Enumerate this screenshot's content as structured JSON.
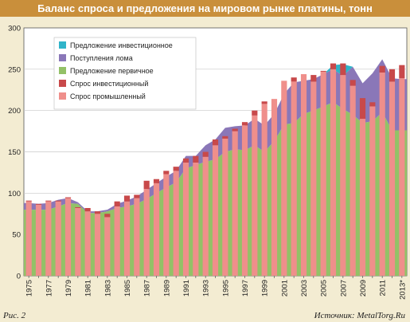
{
  "header": {
    "title": "Баланс спроса и предложения на мировом рынке платины, тонн"
  },
  "footer": {
    "figure_label": "Рис. 2",
    "source": "Источник: MetalTorg.Ru"
  },
  "colors": {
    "investment_supply": "#30b4c9",
    "scrap": "#8a77b8",
    "primary_supply": "#93c167",
    "investment_demand": "#c8494a",
    "industrial_demand": "#ef8f8b",
    "plot_bg": "#ffffff",
    "page_bg": "#f3ecd2",
    "title_bar": "#c98f3b"
  },
  "chart_data": {
    "type": "bar",
    "title": "Баланс спроса и предложения на мировом рынке платины, тонн",
    "ylim": [
      0,
      300
    ],
    "yticks": [
      0,
      50,
      100,
      150,
      200,
      250,
      300
    ],
    "x_tick_labels": [
      "1975",
      "1977",
      "1979",
      "1981",
      "1983",
      "1985",
      "1987",
      "1989",
      "1991",
      "1993",
      "1995",
      "1997",
      "1999",
      "2001",
      "2003",
      "2005",
      "2007",
      "2009",
      "2011",
      "2013*"
    ],
    "x": [
      1975,
      1976,
      1977,
      1978,
      1979,
      1980,
      1981,
      1982,
      1983,
      1984,
      1985,
      1986,
      1987,
      1988,
      1989,
      1990,
      1991,
      1992,
      1993,
      1994,
      1995,
      1996,
      1997,
      1998,
      1999,
      2000,
      2001,
      2002,
      2003,
      2004,
      2005,
      2006,
      2007,
      2008,
      2009,
      2010,
      2011,
      2012,
      2013
    ],
    "grid": true,
    "legend_position": "top-left",
    "supply_series": [
      {
        "name": "Предложение первичное",
        "values": [
          80,
          80,
          80,
          84,
          88,
          87,
          76,
          76,
          78,
          82,
          84,
          87,
          93,
          100,
          107,
          113,
          130,
          134,
          138,
          141,
          150,
          153,
          152,
          158,
          150,
          163,
          183,
          185,
          196,
          200,
          205,
          210,
          202,
          195,
          185,
          187,
          198,
          176,
          176
        ]
      },
      {
        "name": "Поступления лома",
        "values": [
          8,
          7,
          8,
          8,
          6,
          2,
          2,
          2,
          2,
          5,
          7,
          9,
          11,
          12,
          13,
          14,
          15,
          11,
          20,
          24,
          29,
          28,
          30,
          32,
          32,
          33,
          37,
          49,
          40,
          38,
          39,
          40,
          40,
          58,
          48,
          58,
          64,
          63,
          62
        ]
      },
      {
        "name": "Предложение инвестиционное",
        "values": [
          0,
          0,
          0,
          0,
          0,
          0,
          0,
          0,
          0,
          0,
          0,
          0,
          0,
          0,
          0,
          0,
          0,
          0,
          0,
          0,
          0,
          0,
          0,
          0,
          0,
          0,
          0,
          0,
          0,
          0,
          0,
          5,
          14,
          0,
          0,
          0,
          0,
          0,
          0
        ]
      }
    ],
    "demand_series": [
      {
        "name": "Спрос промышленный",
        "values": [
          90,
          86,
          90,
          90,
          94,
          82,
          78,
          75,
          71,
          84,
          90,
          94,
          105,
          112,
          123,
          127,
          137,
          137,
          144,
          158,
          166,
          175,
          182,
          194,
          208,
          214,
          236,
          235,
          244,
          235,
          247,
          250,
          243,
          230,
          190,
          205,
          246,
          235,
          239
        ]
      },
      {
        "name": "Спрос инвестиционный",
        "values": [
          1,
          1,
          1,
          1,
          1,
          1,
          4,
          3,
          4,
          6,
          7,
          4,
          10,
          5,
          4,
          5,
          5,
          8,
          6,
          7,
          3,
          3,
          4,
          6,
          3,
          0,
          0,
          5,
          0,
          8,
          1,
          7,
          14,
          7,
          25,
          5,
          8,
          15,
          16
        ]
      }
    ]
  }
}
